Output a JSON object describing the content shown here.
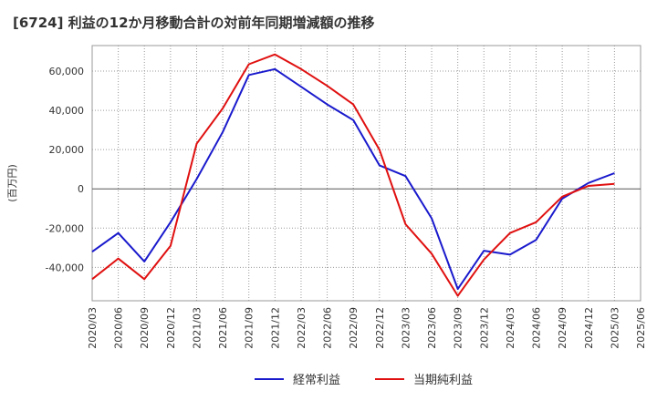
{
  "chart_data": {
    "type": "line",
    "title": "[6724]  利益の12か月移動合計の対前年同期増減額の推移",
    "ylabel": "(百万円)",
    "xlabel": "",
    "ylim": [
      -57000,
      73000
    ],
    "yticks": [
      -40000,
      -20000,
      0,
      20000,
      40000,
      60000
    ],
    "ytick_labels": [
      "-40,000",
      "-20,000",
      "0",
      "20,000",
      "40,000",
      "60,000"
    ],
    "grid": true,
    "legend_position": "bottom-center",
    "categories": [
      "2020/03",
      "2020/06",
      "2020/09",
      "2020/12",
      "2021/03",
      "2021/06",
      "2021/09",
      "2021/12",
      "2022/03",
      "2022/06",
      "2022/09",
      "2022/12",
      "2023/03",
      "2023/06",
      "2023/09",
      "2023/12",
      "2024/03",
      "2024/06",
      "2024/09",
      "2024/12",
      "2025/03",
      "2025/06"
    ],
    "series": [
      {
        "name": "経常利益",
        "color": "#1a1acd",
        "values": [
          -32000,
          -22500,
          -37000,
          -17000,
          5000,
          29000,
          58000,
          61000,
          52000,
          43000,
          35000,
          12000,
          6500,
          -15000,
          -51000,
          -31500,
          -33500,
          -26000,
          -5000,
          3000,
          8000,
          null
        ]
      },
      {
        "name": "当期純利益",
        "color": "#e01010",
        "values": [
          -46000,
          -35500,
          -46000,
          -29000,
          23000,
          41000,
          63500,
          68500,
          61000,
          52500,
          43000,
          20000,
          -18000,
          -33000,
          -54500,
          -36000,
          -22500,
          -17000,
          -4000,
          1500,
          2500,
          null
        ]
      }
    ]
  }
}
